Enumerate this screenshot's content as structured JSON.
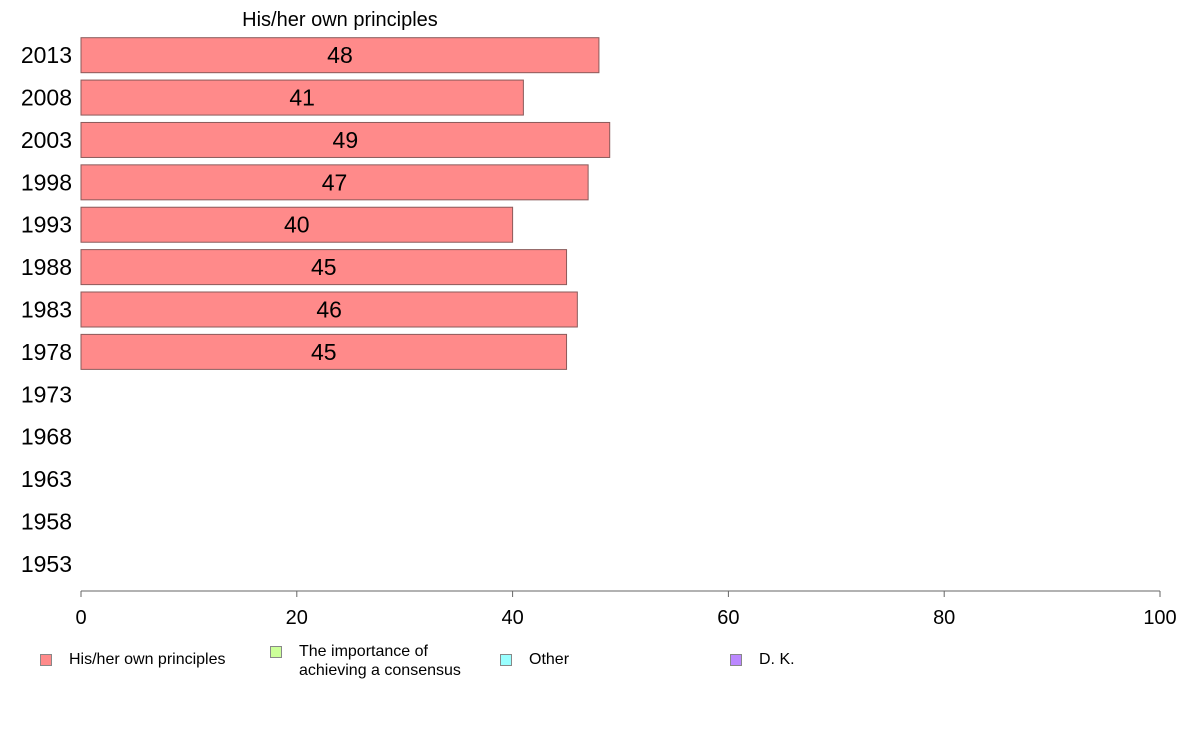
{
  "chart_data": {
    "type": "bar",
    "orientation": "horizontal",
    "title": "His/her own principles",
    "categories": [
      "2013",
      "2008",
      "2003",
      "1998",
      "1993",
      "1988",
      "1983",
      "1978",
      "1973",
      "1968",
      "1963",
      "1958",
      "1953"
    ],
    "series": [
      {
        "name": "His/her own principles",
        "values": [
          48,
          41,
          49,
          47,
          40,
          45,
          46,
          45,
          null,
          null,
          null,
          null,
          null
        ],
        "color": "#ff8a8a"
      }
    ],
    "data_labels": [
      "48",
      "41",
      "49",
      "47",
      "40",
      "45",
      "46",
      "45",
      "",
      "",
      "",
      "",
      ""
    ],
    "xlim": [
      0,
      100
    ],
    "xticks": [
      "0",
      "20",
      "40",
      "60",
      "80",
      "100"
    ],
    "grid": false,
    "legend_position": "bottom"
  },
  "legend": [
    {
      "label": "His/her own principles",
      "color": "#ff8a8a"
    },
    {
      "label": "The importance of\nachieving a consensus",
      "color": "#ccff99"
    },
    {
      "label": "Other",
      "color": "#99ffff"
    },
    {
      "label": "D. K.",
      "color": "#bb88ff"
    }
  ]
}
